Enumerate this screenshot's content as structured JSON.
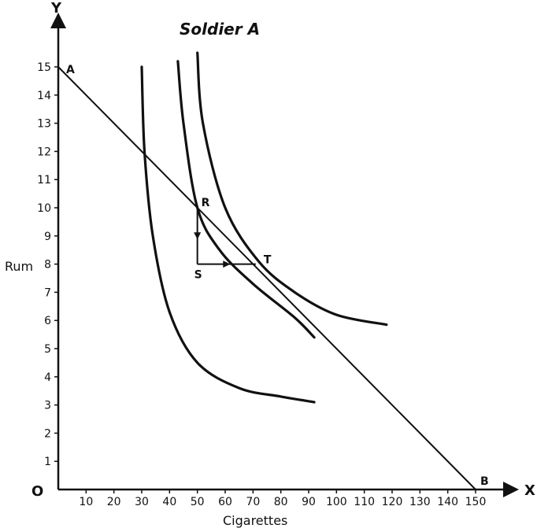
{
  "chart_data": {
    "type": "line",
    "title": "Soldier A",
    "xlabel": "Cigarettes",
    "ylabel": "Rum",
    "origin_label": "O",
    "x_axis_letter": "X",
    "y_axis_letter": "Y",
    "xlim": [
      0,
      150
    ],
    "ylim": [
      0,
      15
    ],
    "x_ticks": [
      "10",
      "20",
      "30",
      "40",
      "50",
      "60",
      "70",
      "80",
      "90",
      "100",
      "110",
      "120",
      "130",
      "140",
      "150"
    ],
    "y_ticks": [
      "1",
      "2",
      "3",
      "4",
      "5",
      "6",
      "7",
      "8",
      "9",
      "10",
      "11",
      "12",
      "13",
      "14",
      "15"
    ],
    "grid": false,
    "series": [
      {
        "kind": "budget-line",
        "points": [
          [
            0,
            15
          ],
          [
            150,
            0
          ]
        ]
      },
      {
        "kind": "indifference-curve",
        "points": [
          [
            30,
            15
          ],
          [
            31,
            12
          ],
          [
            34,
            9
          ],
          [
            40,
            6.3
          ],
          [
            50,
            4.5
          ],
          [
            65,
            3.6
          ],
          [
            80,
            3.3
          ],
          [
            92,
            3.1
          ]
        ]
      },
      {
        "kind": "indifference-curve",
        "points": [
          [
            43,
            15.2
          ],
          [
            45,
            13
          ],
          [
            50,
            10
          ],
          [
            58,
            8.5
          ],
          [
            70,
            7.3
          ],
          [
            85,
            6.1
          ],
          [
            92,
            5.4
          ]
        ]
      },
      {
        "kind": "indifference-curve",
        "points": [
          [
            50,
            15.5
          ],
          [
            52,
            13
          ],
          [
            60,
            10
          ],
          [
            72,
            8.1
          ],
          [
            85,
            7
          ],
          [
            100,
            6.2
          ],
          [
            118,
            5.85
          ]
        ]
      },
      {
        "kind": "adjustment-path",
        "points": [
          [
            50,
            10
          ],
          [
            50,
            8
          ],
          [
            71,
            8
          ]
        ]
      }
    ],
    "points": [
      {
        "label": "A",
        "x": 0,
        "y": 15
      },
      {
        "label": "B",
        "x": 150,
        "y": 0
      },
      {
        "label": "R",
        "x": 50,
        "y": 10
      },
      {
        "label": "S",
        "x": 50,
        "y": 8
      },
      {
        "label": "T",
        "x": 71,
        "y": 8
      }
    ]
  }
}
